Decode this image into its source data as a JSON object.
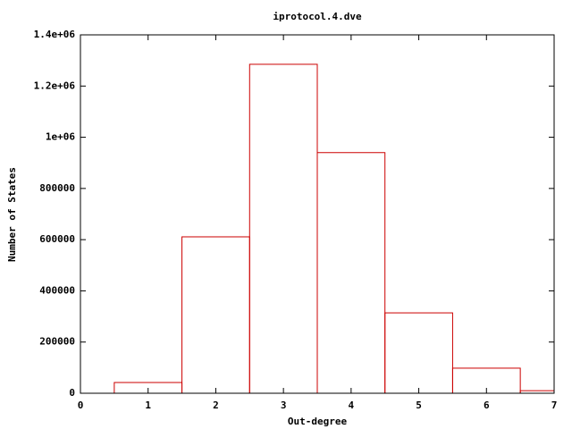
{
  "chart_data": {
    "type": "bar",
    "title": "iprotocol.4.dve",
    "x_label": "Out-degree",
    "y_label": "Number of States",
    "x": [
      1,
      2,
      3,
      4,
      5,
      6,
      7
    ],
    "values": [
      42000,
      611000,
      1285000,
      940000,
      314000,
      98000,
      10000
    ],
    "bar_width": 1,
    "color": "#cc0000",
    "xlim": [
      0,
      7
    ],
    "xticks": [
      0,
      1,
      2,
      3,
      4,
      5,
      6,
      7
    ],
    "ylim": [
      0,
      1400000
    ],
    "yticks": [
      0,
      200000,
      400000,
      600000,
      800000,
      {
        "value": 1000000,
        "label": "1e+06"
      },
      {
        "value": 1200000,
        "label": "1.2e+06"
      },
      {
        "value": 1400000,
        "label": "1.4e+06"
      }
    ]
  }
}
